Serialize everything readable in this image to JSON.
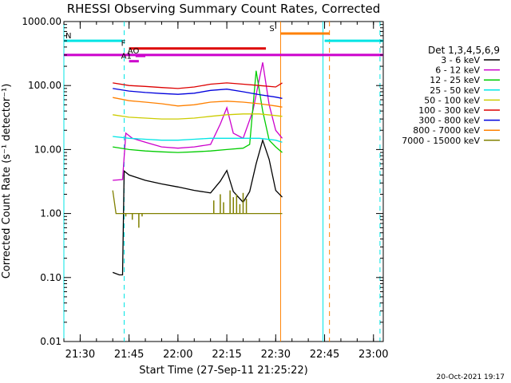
{
  "chart_data": {
    "type": "line",
    "title": "RHESSI Observing Summary Count Rates, Corrected",
    "xlabel": "Start Time (27-Sep-11 21:25:22)",
    "ylabel": "Corrected Count Rate (s⁻¹ detector⁻¹)",
    "y_scale": "log",
    "ylim": [
      0.01,
      1000
    ],
    "xlim": [
      "21:25",
      "23:03"
    ],
    "x_ticks": [
      "21:30",
      "21:45",
      "22:00",
      "22:15",
      "22:30",
      "22:45",
      "23:00"
    ],
    "y_ticks": [
      "0.01",
      "0.10",
      "1.00",
      "10.00",
      "100.00",
      "1000.00"
    ],
    "legend_title": "Det 1,3,4,5,6,9",
    "legend_position": "right",
    "series": [
      {
        "name": "3 - 6 keV",
        "color": "#000000",
        "points": [
          [
            "21:40",
            0.12
          ],
          [
            "21:42",
            0.11
          ],
          [
            "21:43",
            0.11
          ],
          [
            "21:43.5",
            4.6
          ],
          [
            "21:45",
            4.0
          ],
          [
            "21:50",
            3.3
          ],
          [
            "21:55",
            2.9
          ],
          [
            "22:00",
            2.6
          ],
          [
            "22:05",
            2.3
          ],
          [
            "22:10",
            2.1
          ],
          [
            "22:13",
            3.2
          ],
          [
            "22:15",
            4.7
          ],
          [
            "22:17",
            2.2
          ],
          [
            "22:20",
            1.5
          ],
          [
            "22:22",
            2.2
          ],
          [
            "22:24",
            6.0
          ],
          [
            "22:26",
            14.0
          ],
          [
            "22:28",
            7.0
          ],
          [
            "22:30",
            2.3
          ],
          [
            "22:32",
            1.8
          ]
        ]
      },
      {
        "name": "6 - 12 keV",
        "color": "#cc00cc",
        "points": [
          [
            "21:40",
            3.3
          ],
          [
            "21:43",
            3.4
          ],
          [
            "21:44",
            18
          ],
          [
            "21:46",
            15
          ],
          [
            "21:50",
            13
          ],
          [
            "21:55",
            11
          ],
          [
            "22:00",
            10.5
          ],
          [
            "22:05",
            11
          ],
          [
            "22:10",
            12
          ],
          [
            "22:13",
            25
          ],
          [
            "22:15",
            45
          ],
          [
            "22:17",
            18
          ],
          [
            "22:20",
            15
          ],
          [
            "22:23",
            40
          ],
          [
            "22:26",
            230
          ],
          [
            "22:28",
            50
          ],
          [
            "22:30",
            20
          ],
          [
            "22:32",
            15
          ]
        ]
      },
      {
        "name": "12 - 25 keV",
        "color": "#00cc00",
        "points": [
          [
            "21:40",
            11
          ],
          [
            "21:45",
            10
          ],
          [
            "21:50",
            9.5
          ],
          [
            "21:55",
            9.2
          ],
          [
            "22:00",
            9.0
          ],
          [
            "22:05",
            9.2
          ],
          [
            "22:10",
            9.5
          ],
          [
            "22:15",
            10
          ],
          [
            "22:20",
            10.5
          ],
          [
            "22:22",
            12
          ],
          [
            "22:24",
            170
          ],
          [
            "22:26",
            40
          ],
          [
            "22:28",
            14
          ],
          [
            "22:30",
            11
          ],
          [
            "22:32",
            9
          ]
        ]
      },
      {
        "name": "25 - 50 keV",
        "color": "#00e5e5",
        "points": [
          [
            "21:40",
            16
          ],
          [
            "21:45",
            15
          ],
          [
            "21:50",
            14.5
          ],
          [
            "21:55",
            14
          ],
          [
            "22:00",
            14
          ],
          [
            "22:05",
            14.5
          ],
          [
            "22:10",
            15
          ],
          [
            "22:15",
            15
          ],
          [
            "22:20",
            15
          ],
          [
            "22:25",
            15
          ],
          [
            "22:30",
            14
          ],
          [
            "22:32",
            13
          ]
        ]
      },
      {
        "name": "50 - 100 keV",
        "color": "#cccc00",
        "points": [
          [
            "21:40",
            35
          ],
          [
            "21:45",
            32
          ],
          [
            "21:50",
            31
          ],
          [
            "21:55",
            30
          ],
          [
            "22:00",
            30
          ],
          [
            "22:05",
            31
          ],
          [
            "22:10",
            33
          ],
          [
            "22:15",
            35
          ],
          [
            "22:20",
            36
          ],
          [
            "22:25",
            36
          ],
          [
            "22:30",
            34
          ],
          [
            "22:32",
            33
          ]
        ]
      },
      {
        "name": "100 - 300 keV",
        "color": "#dd0000",
        "points": [
          [
            "21:40",
            110
          ],
          [
            "21:45",
            100
          ],
          [
            "21:50",
            97
          ],
          [
            "21:55",
            93
          ],
          [
            "22:00",
            90
          ],
          [
            "22:05",
            95
          ],
          [
            "22:10",
            105
          ],
          [
            "22:15",
            110
          ],
          [
            "22:20",
            105
          ],
          [
            "22:25",
            100
          ],
          [
            "22:30",
            95
          ],
          [
            "22:32",
            110
          ]
        ]
      },
      {
        "name": "300 - 800 keV",
        "color": "#0000dd",
        "points": [
          [
            "21:40",
            90
          ],
          [
            "21:45",
            82
          ],
          [
            "21:50",
            78
          ],
          [
            "21:55",
            75
          ],
          [
            "22:00",
            73
          ],
          [
            "22:05",
            76
          ],
          [
            "22:10",
            84
          ],
          [
            "22:15",
            88
          ],
          [
            "22:20",
            80
          ],
          [
            "22:25",
            72
          ],
          [
            "22:30",
            66
          ],
          [
            "22:32",
            63
          ]
        ]
      },
      {
        "name": "800 - 7000 keV",
        "color": "#ff8000",
        "points": [
          [
            "21:40",
            65
          ],
          [
            "21:45",
            58
          ],
          [
            "21:50",
            55
          ],
          [
            "21:55",
            52
          ],
          [
            "22:00",
            48
          ],
          [
            "22:05",
            50
          ],
          [
            "22:10",
            55
          ],
          [
            "22:15",
            57
          ],
          [
            "22:20",
            55
          ],
          [
            "22:25",
            52
          ],
          [
            "22:30",
            48
          ],
          [
            "22:32",
            46
          ]
        ]
      },
      {
        "name": "7000 - 15000 keV",
        "color": "#808000",
        "points": [
          [
            "21:40",
            2.3
          ],
          [
            "21:41",
            1.0
          ],
          [
            "21:45",
            1.0
          ],
          [
            "21:50",
            1.0
          ],
          [
            "21:55",
            1.0
          ],
          [
            "22:00",
            1.0
          ],
          [
            "22:05",
            1.0
          ],
          [
            "22:10",
            1.0
          ],
          [
            "22:15",
            1.0
          ],
          [
            "22:20",
            1.0
          ],
          [
            "22:25",
            1.0
          ],
          [
            "22:30",
            1.0
          ],
          [
            "22:32",
            1.0
          ]
        ],
        "spikes": [
          [
            "21:44",
            0.9
          ],
          [
            "21:46",
            0.8
          ],
          [
            "21:48",
            0.6
          ],
          [
            "21:49",
            0.9
          ],
          [
            "22:11",
            1.6
          ],
          [
            "22:13",
            2.0
          ],
          [
            "22:14",
            1.5
          ],
          [
            "22:16",
            2.3
          ],
          [
            "22:17",
            1.8
          ],
          [
            "22:18",
            2.0
          ],
          [
            "22:19",
            1.4
          ],
          [
            "22:20",
            2.1
          ],
          [
            "22:21",
            1.7
          ]
        ]
      }
    ],
    "flags": [
      {
        "label": "N",
        "color": "#00e5e5",
        "segments": [
          [
            "21:25",
            "21:43"
          ],
          [
            "22:45",
            "23:03"
          ]
        ],
        "y": 500
      },
      {
        "label": "S",
        "color": "#ff8000",
        "segments": [
          [
            "22:31.5",
            "22:46.5"
          ]
        ],
        "y": 650
      },
      {
        "label": "F",
        "color": "#dd0000",
        "segments": [
          [
            "21:45",
            "22:27"
          ]
        ],
        "y": 380
      },
      {
        "label": "",
        "color": "#cc00cc",
        "segments": [
          [
            "21:25",
            "23:03"
          ]
        ],
        "y": 300
      },
      {
        "label": "AO",
        "color": "#cc00cc",
        "segments": [
          [
            "21:47",
            "21:50"
          ]
        ],
        "y": 290
      },
      {
        "label": "A1",
        "color": "#cc00cc",
        "segments": [
          [
            "21:45",
            "21:48"
          ]
        ],
        "y": 240
      }
    ],
    "vlines": [
      {
        "x": "21:25",
        "color": "#00e5e5",
        "style": "solid"
      },
      {
        "x": "21:43.5",
        "color": "#00e5e5",
        "style": "dashed"
      },
      {
        "x": "22:31.5",
        "color": "#ff8000",
        "style": "solid"
      },
      {
        "x": "22:44.5",
        "color": "#00e5e5",
        "style": "solid"
      },
      {
        "x": "22:46.5",
        "color": "#ff8000",
        "style": "dashed"
      },
      {
        "x": "23:02",
        "color": "#00e5e5",
        "style": "dashed"
      }
    ]
  },
  "footer": {
    "date_stamp": "20-Oct-2021 19:17"
  }
}
